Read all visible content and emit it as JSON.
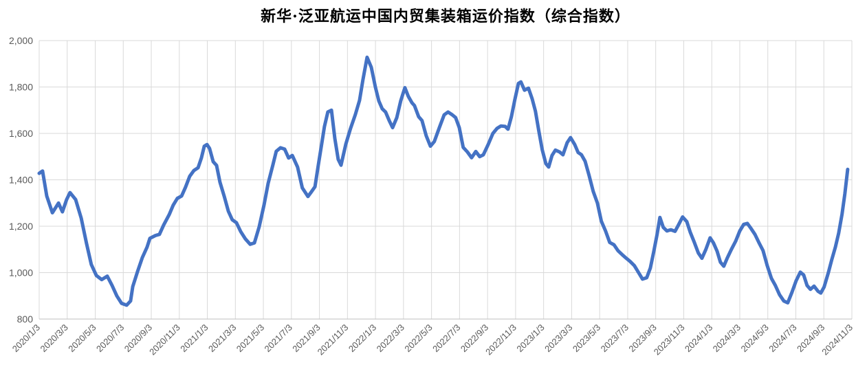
{
  "style": {
    "background": "#ffffff",
    "grid_color": "#d9d9d9",
    "axis_color": "#bfbfbf",
    "tick_label_color": "#595959",
    "title_color": "#000000",
    "line_color": "#4472c4"
  },
  "chart_data": {
    "type": "line",
    "title": "新华·泛亚航运中国内贸集装箱运价指数（综合指数）",
    "xlabel": "",
    "ylabel": "",
    "ylim": [
      800,
      2000
    ],
    "grid": true,
    "legend": "none",
    "y_ticks": [
      {
        "value": 800,
        "label": "800"
      },
      {
        "value": 1000,
        "label": "1,000"
      },
      {
        "value": 1200,
        "label": "1,200"
      },
      {
        "value": 1400,
        "label": "1,400"
      },
      {
        "value": 1600,
        "label": "1,600"
      },
      {
        "value": 1800,
        "label": "1,800"
      },
      {
        "value": 2000,
        "label": "2,000"
      }
    ],
    "x_tick_labels": [
      "2020/1/3",
      "2020/3/3",
      "2020/5/3",
      "2020/7/3",
      "2020/9/3",
      "2020/11/3",
      "2021/1/3",
      "2021/3/3",
      "2021/5/3",
      "2021/7/3",
      "2021/9/3",
      "2021/11/3",
      "2022/1/3",
      "2022/3/3",
      "2022/5/3",
      "2022/7/3",
      "2022/9/3",
      "2022/11/3",
      "2023/1/3",
      "2023/3/3",
      "2023/5/3",
      "2023/7/3",
      "2023/9/3",
      "2023/11/3",
      "2024/1/3",
      "2024/3/3",
      "2024/5/3",
      "2024/7/3",
      "2024/9/3",
      "2024/11/3"
    ],
    "x_axis_note": "series points given as [axis_position, index_value]; axis_position is in tick units where 0 = 2020/1/3 and 29 = 2024/11/3 (one unit = 2 months)",
    "series": [
      {
        "name": "综合指数",
        "color": "#4472c4",
        "points": [
          [
            0,
            1428
          ],
          [
            0.12,
            1438
          ],
          [
            0.27,
            1330
          ],
          [
            0.47,
            1258
          ],
          [
            0.69,
            1300
          ],
          [
            0.83,
            1262
          ],
          [
            0.98,
            1315
          ],
          [
            1.1,
            1345
          ],
          [
            1.3,
            1315
          ],
          [
            1.5,
            1235
          ],
          [
            1.69,
            1125
          ],
          [
            1.86,
            1035
          ],
          [
            2.04,
            988
          ],
          [
            2.23,
            970
          ],
          [
            2.43,
            985
          ],
          [
            2.6,
            945
          ],
          [
            2.77,
            900
          ],
          [
            2.94,
            868
          ],
          [
            3.12,
            860
          ],
          [
            3.26,
            878
          ],
          [
            3.34,
            940
          ],
          [
            3.51,
            1005
          ],
          [
            3.68,
            1065
          ],
          [
            3.85,
            1110
          ],
          [
            3.95,
            1148
          ],
          [
            4.15,
            1160
          ],
          [
            4.29,
            1165
          ],
          [
            4.44,
            1205
          ],
          [
            4.64,
            1250
          ],
          [
            4.78,
            1290
          ],
          [
            4.93,
            1320
          ],
          [
            5.08,
            1330
          ],
          [
            5.22,
            1368
          ],
          [
            5.37,
            1415
          ],
          [
            5.52,
            1440
          ],
          [
            5.67,
            1452
          ],
          [
            5.79,
            1495
          ],
          [
            5.89,
            1545
          ],
          [
            5.99,
            1552
          ],
          [
            6.08,
            1535
          ],
          [
            6.21,
            1478
          ],
          [
            6.33,
            1462
          ],
          [
            6.45,
            1390
          ],
          [
            6.6,
            1330
          ],
          [
            6.75,
            1265
          ],
          [
            6.89,
            1228
          ],
          [
            7.04,
            1215
          ],
          [
            7.19,
            1177
          ],
          [
            7.36,
            1145
          ],
          [
            7.53,
            1122
          ],
          [
            7.68,
            1128
          ],
          [
            7.85,
            1198
          ],
          [
            8.02,
            1290
          ],
          [
            8.17,
            1385
          ],
          [
            8.34,
            1464
          ],
          [
            8.46,
            1523
          ],
          [
            8.61,
            1538
          ],
          [
            8.76,
            1532
          ],
          [
            8.9,
            1494
          ],
          [
            9.03,
            1505
          ],
          [
            9.22,
            1455
          ],
          [
            9.39,
            1365
          ],
          [
            9.59,
            1328
          ],
          [
            9.71,
            1348
          ],
          [
            9.84,
            1370
          ],
          [
            9.96,
            1464
          ],
          [
            10.08,
            1553
          ],
          [
            10.18,
            1630
          ],
          [
            10.3,
            1692
          ],
          [
            10.43,
            1700
          ],
          [
            10.55,
            1578
          ],
          [
            10.67,
            1488
          ],
          [
            10.77,
            1463
          ],
          [
            10.94,
            1553
          ],
          [
            11.11,
            1621
          ],
          [
            11.28,
            1681
          ],
          [
            11.43,
            1742
          ],
          [
            11.55,
            1830
          ],
          [
            11.7,
            1928
          ],
          [
            11.85,
            1885
          ],
          [
            12.0,
            1798
          ],
          [
            12.12,
            1740
          ],
          [
            12.24,
            1706
          ],
          [
            12.36,
            1692
          ],
          [
            12.49,
            1655
          ],
          [
            12.61,
            1625
          ],
          [
            12.76,
            1668
          ],
          [
            12.9,
            1740
          ],
          [
            13.05,
            1797
          ],
          [
            13.17,
            1760
          ],
          [
            13.3,
            1732
          ],
          [
            13.39,
            1720
          ],
          [
            13.54,
            1672
          ],
          [
            13.66,
            1655
          ],
          [
            13.81,
            1590
          ],
          [
            13.96,
            1545
          ],
          [
            14.1,
            1565
          ],
          [
            14.28,
            1625
          ],
          [
            14.45,
            1680
          ],
          [
            14.59,
            1692
          ],
          [
            14.74,
            1680
          ],
          [
            14.86,
            1668
          ],
          [
            14.99,
            1625
          ],
          [
            15.13,
            1540
          ],
          [
            15.28,
            1520
          ],
          [
            15.43,
            1495
          ],
          [
            15.58,
            1522
          ],
          [
            15.72,
            1500
          ],
          [
            15.85,
            1508
          ],
          [
            16.02,
            1552
          ],
          [
            16.19,
            1600
          ],
          [
            16.34,
            1622
          ],
          [
            16.48,
            1632
          ],
          [
            16.63,
            1630
          ],
          [
            16.73,
            1618
          ],
          [
            16.85,
            1672
          ],
          [
            16.97,
            1744
          ],
          [
            17.1,
            1815
          ],
          [
            17.19,
            1822
          ],
          [
            17.32,
            1786
          ],
          [
            17.46,
            1795
          ],
          [
            17.59,
            1750
          ],
          [
            17.71,
            1695
          ],
          [
            17.83,
            1610
          ],
          [
            17.95,
            1530
          ],
          [
            18.08,
            1470
          ],
          [
            18.18,
            1455
          ],
          [
            18.3,
            1505
          ],
          [
            18.42,
            1528
          ],
          [
            18.57,
            1520
          ],
          [
            18.69,
            1508
          ],
          [
            18.84,
            1560
          ],
          [
            18.96,
            1582
          ],
          [
            19.11,
            1552
          ],
          [
            19.23,
            1518
          ],
          [
            19.35,
            1508
          ],
          [
            19.48,
            1480
          ],
          [
            19.62,
            1420
          ],
          [
            19.77,
            1350
          ],
          [
            19.92,
            1300
          ],
          [
            20.06,
            1222
          ],
          [
            20.21,
            1180
          ],
          [
            20.36,
            1130
          ],
          [
            20.51,
            1120
          ],
          [
            20.65,
            1095
          ],
          [
            20.8,
            1078
          ],
          [
            20.95,
            1062
          ],
          [
            21.09,
            1048
          ],
          [
            21.24,
            1030
          ],
          [
            21.39,
            1000
          ],
          [
            21.53,
            972
          ],
          [
            21.68,
            978
          ],
          [
            21.81,
            1020
          ],
          [
            21.93,
            1090
          ],
          [
            22.05,
            1165
          ],
          [
            22.15,
            1238
          ],
          [
            22.27,
            1195
          ],
          [
            22.4,
            1180
          ],
          [
            22.54,
            1185
          ],
          [
            22.69,
            1178
          ],
          [
            22.81,
            1205
          ],
          [
            22.96,
            1240
          ],
          [
            23.11,
            1220
          ],
          [
            23.23,
            1175
          ],
          [
            23.38,
            1130
          ],
          [
            23.52,
            1085
          ],
          [
            23.65,
            1062
          ],
          [
            23.79,
            1100
          ],
          [
            23.94,
            1150
          ],
          [
            24.06,
            1128
          ],
          [
            24.19,
            1092
          ],
          [
            24.31,
            1045
          ],
          [
            24.43,
            1028
          ],
          [
            24.55,
            1062
          ],
          [
            24.7,
            1100
          ],
          [
            24.85,
            1135
          ],
          [
            25.0,
            1180
          ],
          [
            25.14,
            1208
          ],
          [
            25.27,
            1212
          ],
          [
            25.39,
            1192
          ],
          [
            25.54,
            1165
          ],
          [
            25.68,
            1130
          ],
          [
            25.83,
            1095
          ],
          [
            25.98,
            1030
          ],
          [
            26.13,
            975
          ],
          [
            26.27,
            945
          ],
          [
            26.42,
            905
          ],
          [
            26.57,
            878
          ],
          [
            26.71,
            870
          ],
          [
            26.86,
            915
          ],
          [
            27.01,
            965
          ],
          [
            27.16,
            1002
          ],
          [
            27.28,
            990
          ],
          [
            27.4,
            945
          ],
          [
            27.52,
            928
          ],
          [
            27.65,
            942
          ],
          [
            27.79,
            920
          ],
          [
            27.89,
            912
          ],
          [
            28.01,
            938
          ],
          [
            28.16,
            1000
          ],
          [
            28.28,
            1055
          ],
          [
            28.41,
            1110
          ],
          [
            28.53,
            1170
          ],
          [
            28.65,
            1252
          ],
          [
            28.75,
            1340
          ],
          [
            28.85,
            1445
          ]
        ]
      }
    ]
  }
}
